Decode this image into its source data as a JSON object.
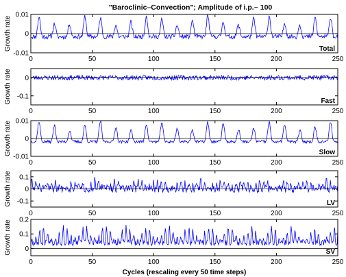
{
  "chart_data": {
    "type": "line",
    "title": "\"Baroclinic–Convection\"; Amplitude of i.p.~ 100",
    "xlabel": "Cycles (rescaling every 50 time steps)",
    "x_range": [
      0,
      250
    ],
    "x_ticks": [
      "0",
      "50",
      "100",
      "150",
      "200",
      "250"
    ],
    "x_tick_values": [
      0,
      50,
      100,
      150,
      200,
      250
    ],
    "line_color": "#0000ff",
    "panels": [
      {
        "label": "Total",
        "ylabel": "Growth rate",
        "ylim": [
          -0.01,
          0.01
        ],
        "y_ticks": [
          {
            "value": 0.01,
            "label": "0.01"
          },
          {
            "value": 0,
            "label": "0"
          },
          {
            "value": -0.01,
            "label": "-0.01"
          }
        ],
        "zero_line": true,
        "series": {
          "period": 12.5,
          "offset": 3.5,
          "base": -0.0016,
          "amp": 0.0084,
          "sharpness": 3,
          "mod": 0.3,
          "noise": 0.0012,
          "seed": 11
        }
      },
      {
        "label": "Fast",
        "ylabel": "Growth rate",
        "ylim": [
          -0.15,
          0.05
        ],
        "y_ticks": [
          {
            "value": 0,
            "label": "0"
          },
          {
            "value": -0.1,
            "label": "-0.1"
          }
        ],
        "zero_line": true,
        "series": {
          "period": 1,
          "offset": 0,
          "base": 0.0,
          "amp": 0.0,
          "sharpness": 1,
          "mod": 0,
          "noise": 0.013,
          "seed": 23
        }
      },
      {
        "label": "Slow",
        "ylabel": "Growth rate",
        "ylim": [
          -0.01,
          0.01
        ],
        "y_ticks": [
          {
            "value": 0.01,
            "label": "0.01"
          },
          {
            "value": 0,
            "label": "0"
          },
          {
            "value": -0.01,
            "label": "-0.01"
          }
        ],
        "zero_line": true,
        "series": {
          "period": 12.5,
          "offset": 3.5,
          "base": -0.0018,
          "amp": 0.0088,
          "sharpness": 3,
          "mod": 0.3,
          "noise": 0.0008,
          "seed": 37
        }
      },
      {
        "label": "LV",
        "ylabel": "Growth rate",
        "ylim": [
          -0.15,
          0.15
        ],
        "y_ticks": [
          {
            "value": 0.1,
            "label": "0.1"
          },
          {
            "value": 0,
            "label": "0"
          },
          {
            "value": -0.1,
            "label": "-0.1"
          }
        ],
        "zero_line": true,
        "series": {
          "period": 3.2,
          "offset": 0,
          "base": 0.0,
          "amp": 0.045,
          "sharpness": 1,
          "mod": 0.6,
          "noise": 0.03,
          "seed": 51
        }
      },
      {
        "label": "SV",
        "ylabel": "Growth rate",
        "ylim": [
          -0.05,
          0.2
        ],
        "y_ticks": [
          {
            "value": 0.2,
            "label": "0.2"
          },
          {
            "value": 0.1,
            "label": "0.1"
          },
          {
            "value": 0,
            "label": "0"
          }
        ],
        "zero_line": true,
        "series": {
          "period": 3.2,
          "offset": 0,
          "base": 0.04,
          "amp": 0.065,
          "sharpness": 1,
          "mod": 0.7,
          "noise": 0.02,
          "seed": 67
        }
      }
    ]
  }
}
